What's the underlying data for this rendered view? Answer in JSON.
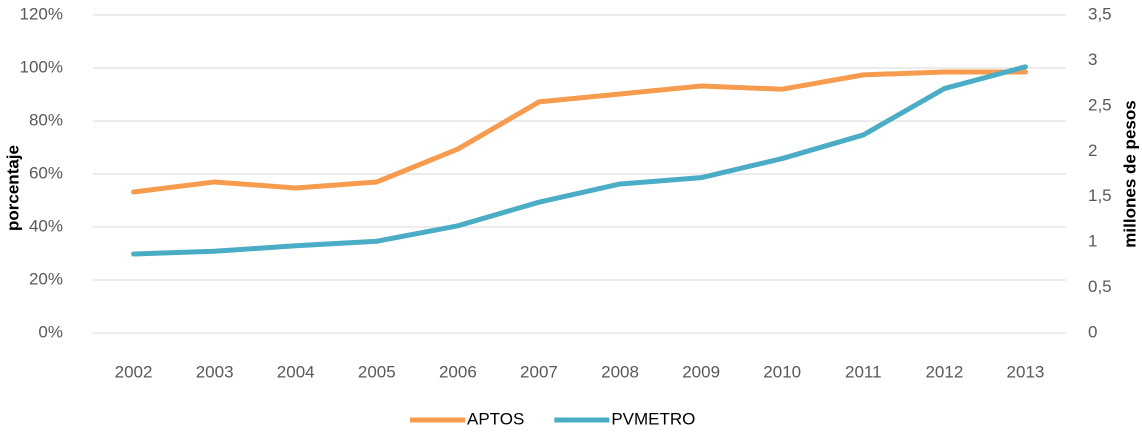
{
  "chart_data": {
    "type": "line",
    "categories": [
      "2002",
      "2003",
      "2004",
      "2005",
      "2006",
      "2007",
      "2008",
      "2009",
      "2010",
      "2011",
      "2012",
      "2013"
    ],
    "series": [
      {
        "name": "APTOS",
        "color": "#f79c4f",
        "values": [
          53.2,
          57,
          54.7,
          57,
          69.4,
          87.2,
          90.2,
          93.2,
          92,
          97.4,
          98.5,
          98.5
        ]
      },
      {
        "name": "PVMETRO",
        "color": "#4bacc6",
        "axis": "y2",
        "values": [
          0.87,
          0.9,
          0.96,
          1.01,
          1.18,
          1.44,
          1.64,
          1.71,
          1.92,
          2.18,
          2.69,
          2.93
        ]
      }
    ],
    "ylabel": "porcentaje",
    "y2label": "millones de pesos",
    "ylim": [
      0,
      120
    ],
    "yticks": [
      {
        "value": 0,
        "label": "0%"
      },
      {
        "value": 20,
        "label": "20%"
      },
      {
        "value": 40,
        "label": "40%"
      },
      {
        "value": 60,
        "label": "60%"
      },
      {
        "value": 80,
        "label": "80%"
      },
      {
        "value": 100,
        "label": "100%"
      },
      {
        "value": 120,
        "label": "120%"
      }
    ],
    "y2lim": [
      0,
      3.5
    ],
    "y2ticks": [
      0,
      {
        "value": 0.5,
        "label": "0,5"
      },
      1,
      {
        "value": 1.5,
        "label": "1,5"
      },
      2,
      {
        "value": 2.5,
        "label": "2,5"
      },
      3,
      {
        "value": 3.5,
        "label": "3,5"
      }
    ],
    "grid": true,
    "legend": "bottom"
  }
}
